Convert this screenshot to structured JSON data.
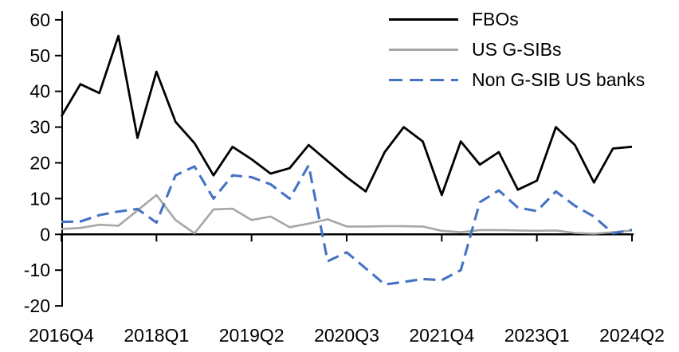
{
  "chart_data": {
    "type": "line",
    "title": "",
    "xlabel": "",
    "ylabel": "",
    "grid": false,
    "legend_position": "top-right",
    "ylim": [
      -20,
      60
    ],
    "yticks": [
      60,
      50,
      40,
      30,
      20,
      10,
      0,
      -10,
      -20
    ],
    "categories": [
      "2016Q4",
      "2017Q1",
      "2017Q2",
      "2017Q3",
      "2017Q4",
      "2018Q1",
      "2018Q2",
      "2018Q3",
      "2018Q4",
      "2019Q1",
      "2019Q2",
      "2019Q3",
      "2019Q4",
      "2020Q1",
      "2020Q2",
      "2020Q3",
      "2020Q4",
      "2021Q1",
      "2021Q2",
      "2021Q3",
      "2021Q4",
      "2022Q1",
      "2022Q2",
      "2022Q3",
      "2022Q4",
      "2023Q1",
      "2023Q2",
      "2023Q3",
      "2023Q4",
      "2024Q1",
      "2024Q2"
    ],
    "xtick_indices": [
      0,
      5,
      10,
      15,
      20,
      25,
      30
    ],
    "xtick_labels": [
      "2016Q4",
      "2018Q1",
      "2019Q2",
      "2020Q3",
      "2021Q4",
      "2023Q1",
      "2024Q2"
    ],
    "series": [
      {
        "name": "FBOs",
        "color": "#000000",
        "style": "solid",
        "values": [
          33,
          42,
          39.5,
          55.5,
          27,
          45.5,
          31.5,
          25.5,
          16.5,
          24.5,
          21,
          17,
          18.5,
          25,
          20.5,
          16,
          12,
          23,
          30,
          26,
          11,
          26,
          19.5,
          23,
          12.5,
          15,
          30,
          25,
          14.5,
          24,
          24.5
        ]
      },
      {
        "name": "US G-SIBs",
        "color": "#a6a6a6",
        "style": "solid",
        "values": [
          1.5,
          1.8,
          2.7,
          2.4,
          6.7,
          11,
          4,
          0.3,
          7,
          7.2,
          4,
          5,
          2,
          3,
          4.2,
          2.2,
          2.2,
          2.3,
          2.3,
          2.2,
          1,
          0.6,
          1.2,
          1.2,
          1.1,
          1,
          1.1,
          0.4,
          0.2,
          0.6,
          1.1
        ]
      },
      {
        "name": "Non G-SIB US banks",
        "color": "#4472c4",
        "style": "dashed",
        "values": [
          3.5,
          3.6,
          5.4,
          6.4,
          7.1,
          3.3,
          16.5,
          19,
          10,
          16.5,
          16,
          14,
          10,
          19.3,
          -7.5,
          -5,
          -9.5,
          -14,
          -13.3,
          -12.5,
          -12.8,
          -10,
          9,
          12.3,
          7.5,
          6.5,
          12,
          8,
          5,
          0.3,
          1.3
        ]
      }
    ]
  }
}
